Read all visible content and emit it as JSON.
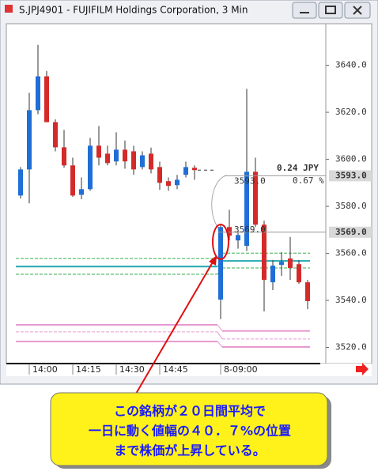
{
  "window": {
    "title": "S.JPJ4901 - FUJIFILM Holdings Corporation, 3 Min"
  },
  "chart_data": {
    "type": "candlestick",
    "categories": [
      null,
      "14:00",
      null,
      null,
      null,
      null,
      "14:15",
      null,
      null,
      null,
      null,
      "14:30",
      null,
      null,
      null,
      null,
      "14:45",
      null,
      null,
      null,
      null,
      null,
      null,
      "8-09:00",
      null,
      null,
      null,
      null,
      null,
      null,
      null,
      null,
      null,
      null
    ],
    "open": [
      3584.6,
      3595.7,
      3620.9,
      3635.3,
      3615.8,
      3605.1,
      3597.4,
      3584.9,
      3587.3,
      3605.8,
      3602.4,
      3599.1,
      3604.1,
      3603.4,
      3596.7,
      3602.4,
      3596.7,
      3590.7,
      3589,
      3593.4,
      3596.4,
      null,
      null,
      3540.3,
      3571.2,
      3565.5,
      3563.2,
      3594.7,
      3572.2,
      3547.7,
      3555.1,
      3557.8,
      3555.4,
      3547.7
    ],
    "high": [
      3596.7,
      3628.3,
      3648.7,
      3637.6,
      3617,
      3612.5,
      3600.7,
      3592.3,
      3609.1,
      3614.2,
      3605.8,
      3611.5,
      3608,
      3605.8,
      3603.4,
      3605,
      3599,
      3592.3,
      3593.4,
      3599,
      3597.4,
      null,
      null,
      3572,
      3578.5,
      3568.8,
      3630,
      3600.7,
      3573.9,
      3557.1,
      3560.5,
      3567,
      3557.1,
      3548.7
    ],
    "low": [
      3583.3,
      3581.3,
      3619.2,
      3615.8,
      3603.4,
      3596.4,
      3584,
      3583,
      3586.6,
      3597.4,
      3597.4,
      3597.4,
      3596,
      3593.4,
      3595.7,
      3594,
      3587,
      3586.6,
      3587.3,
      3592.3,
      3591.3,
      null,
      null,
      3532,
      3565.5,
      3562,
      3561,
      3571.2,
      3535.3,
      3544.4,
      3550.4,
      3548.7,
      3547,
      3536.3
    ],
    "close": [
      3595.7,
      3620.9,
      3635.3,
      3615.8,
      3605.1,
      3597.4,
      3584.6,
      3587.3,
      3605.8,
      3600.7,
      3598.4,
      3604.1,
      3599.1,
      3595.7,
      3601.7,
      3595.7,
      3590,
      3588.7,
      3591.3,
      3596.7,
      3595.4,
      null,
      null,
      3571.2,
      3567.5,
      3567.8,
      3594.7,
      3572.2,
      3548.7,
      3554.8,
      3556.4,
      3553.8,
      3547.7,
      3539.7
    ],
    "up_color": "#1f6fd6",
    "down_color": "#d42a2a",
    "ylim": [
      3513.8,
      3657
    ],
    "yticks": [
      {
        "value": 3520,
        "label": "3520.0"
      },
      {
        "value": 3540,
        "label": "3540.0"
      },
      {
        "value": 3560,
        "label": "3560.0"
      },
      {
        "value": 3580,
        "label": "3580.0"
      },
      {
        "value": 3600,
        "label": "3600.0"
      },
      {
        "value": 3620,
        "label": "3620.0"
      },
      {
        "value": 3640,
        "label": "3640.0"
      }
    ],
    "levels": [
      {
        "color": "#33b04a",
        "dash": true,
        "values": [
          3557.8,
          3560.1
        ]
      },
      {
        "color": "#22a8b0",
        "dash": false,
        "values": [
          3554.4,
          3556.8
        ]
      },
      {
        "color": "#33b04a",
        "dash": true,
        "values": [
          3551.1,
          3553.8
        ]
      },
      {
        "color": "#e79ad0",
        "dash": false,
        "values": [
          3529.6,
          3527
        ]
      },
      {
        "color": "#e79ad0",
        "dash": true,
        "values": [
          3526.6,
          3523.6
        ]
      },
      {
        "color": "#e79ad0",
        "dash": false,
        "values": [
          3522.5,
          3520.2
        ]
      }
    ],
    "price_markers": [
      {
        "value": 3593,
        "label": "3593.0"
      },
      {
        "value": 3569,
        "label": "3569.0"
      }
    ],
    "annotations": [
      "0.24 JPY",
      "0.67 %"
    ]
  },
  "callout": {
    "lines": [
      "この銘柄が２０日間平均で",
      "一日に動く値幅の４０．７%の位置",
      "まで株価が上昇している。"
    ]
  }
}
